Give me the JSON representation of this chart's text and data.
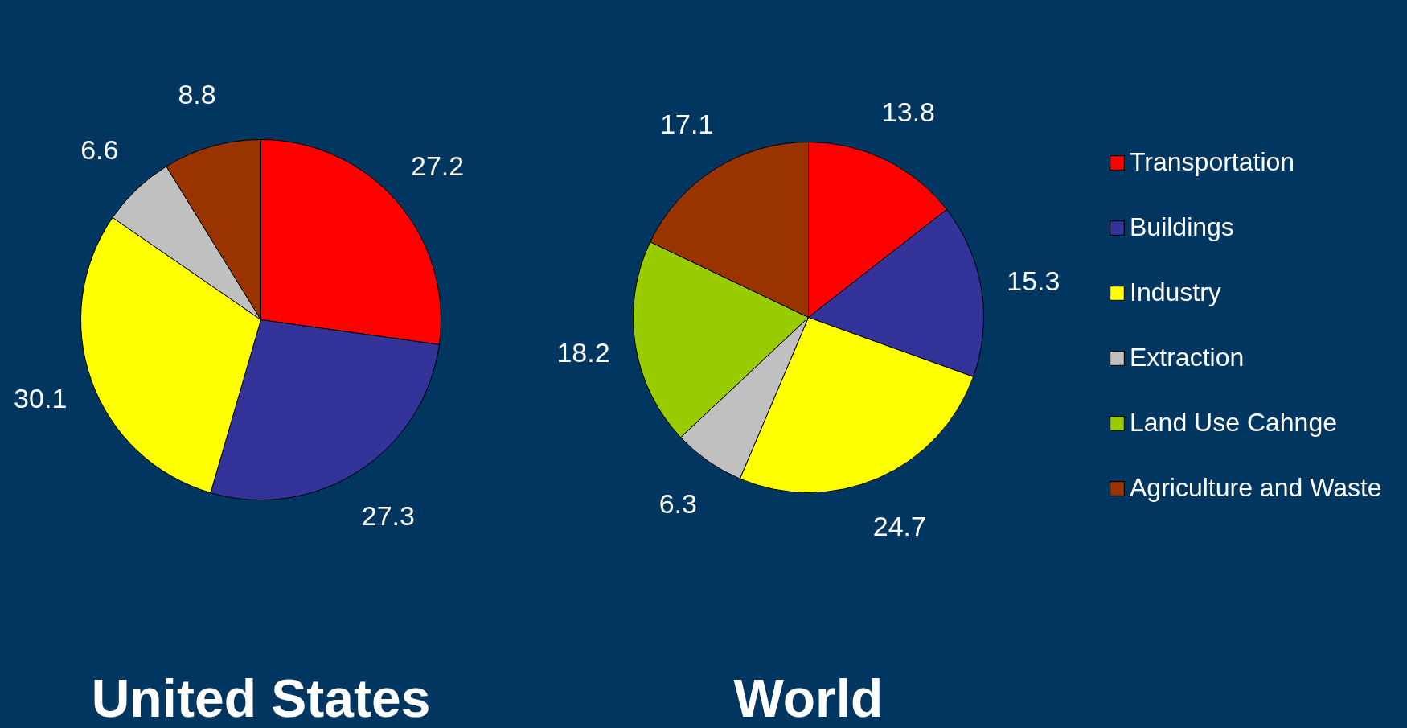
{
  "chart_data": {
    "type": "pie",
    "categories": [
      "Transportation",
      "Buildings",
      "Industry",
      "Extraction",
      "Land Use Cahnge",
      "Agriculture and Waste"
    ],
    "colors": [
      "#ff0000",
      "#333399",
      "#ffff00",
      "#c0c0c0",
      "#99cc00",
      "#993300"
    ],
    "data_labels": true,
    "legend": "right",
    "series": [
      {
        "name": "United States",
        "values": [
          27.2,
          27.3,
          30.1,
          6.6,
          null,
          8.8
        ]
      },
      {
        "name": "World",
        "values": [
          13.8,
          15.3,
          24.7,
          6.3,
          18.2,
          17.1
        ]
      }
    ]
  }
}
